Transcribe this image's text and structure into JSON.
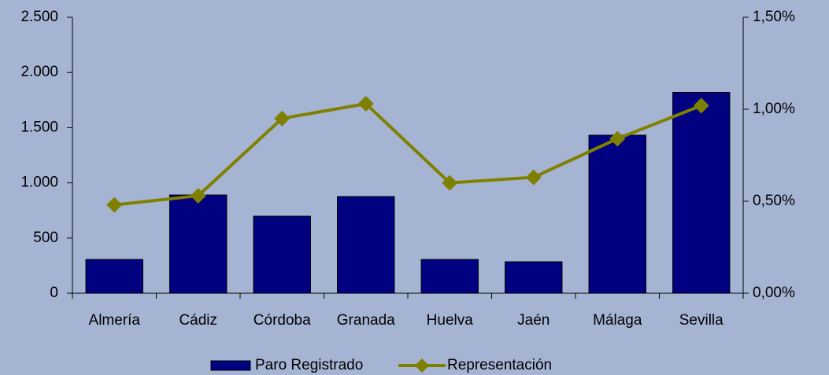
{
  "chart_data": {
    "type": "bar",
    "categories": [
      "Almería",
      "Cádiz",
      "Córdoba",
      "Granada",
      "Huelva",
      "Jaén",
      "Málaga",
      "Sevilla"
    ],
    "series": [
      {
        "name": "Paro Registrado",
        "type": "bar",
        "color": "#000080",
        "values": [
          306,
          890,
          698,
          876,
          306,
          285,
          1432,
          1820
        ]
      },
      {
        "name": "Representación",
        "type": "line",
        "axis": "y2",
        "color": "#808000",
        "values": [
          0.48,
          0.53,
          0.95,
          1.03,
          0.6,
          0.63,
          0.84,
          1.02
        ]
      }
    ],
    "ylim": [
      0,
      2500
    ],
    "yticks": [
      0,
      500,
      {
        "value": 1000,
        "label": "1.000"
      },
      {
        "value": 1500,
        "label": "1.500"
      },
      {
        "value": 2000,
        "label": "2.000"
      },
      {
        "value": 2500,
        "label": "2.500"
      }
    ],
    "y2lim": [
      0,
      1.5
    ],
    "y2ticks": [
      {
        "value": 0,
        "label": "0,00%"
      },
      {
        "value": 0.5,
        "label": "0,50%"
      },
      {
        "value": 1.0,
        "label": "1,00%"
      },
      {
        "value": 1.5,
        "label": "1,50%"
      }
    ],
    "legend": "bottom"
  }
}
